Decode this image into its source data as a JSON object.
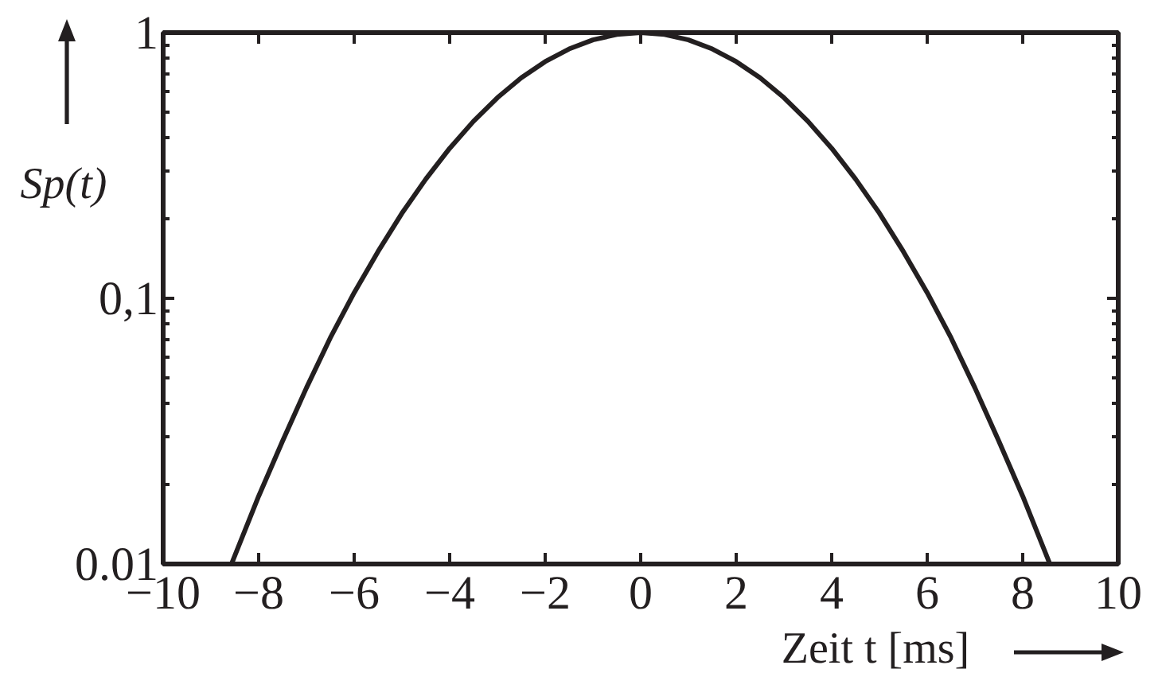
{
  "chart_data": {
    "type": "line",
    "xlabel": "Zeit t [ms]",
    "ylabel": "Sp(t)",
    "log": "y",
    "grid": false,
    "xlim": [
      -10,
      10
    ],
    "ylim": [
      0.01,
      1
    ],
    "xticks": [
      {
        "value": -10,
        "label": "−10"
      },
      {
        "value": -8,
        "label": "−8"
      },
      {
        "value": -6,
        "label": "−6"
      },
      {
        "value": -4,
        "label": "−4"
      },
      {
        "value": -2,
        "label": "−2"
      },
      0,
      2,
      4,
      6,
      8,
      10
    ],
    "yticks": [
      0.01,
      {
        "value": 0.1,
        "label": "0,1"
      },
      1
    ],
    "x": [
      -8.57,
      -8,
      -7.5,
      -7,
      -6.5,
      -6,
      -5.5,
      -5,
      -4.5,
      -4,
      -3.5,
      -3,
      -2.5,
      -2,
      -1.5,
      -1,
      -0.5,
      0,
      0.5,
      1,
      1.5,
      2,
      2.5,
      3,
      3.5,
      4,
      4.5,
      5,
      5.5,
      6,
      6.5,
      7,
      7.5,
      8,
      8.57
    ],
    "series": [
      {
        "color": "#231f20",
        "values": [
          0.01,
          0.018,
          0.029,
          0.046,
          0.071,
          0.105,
          0.15,
          0.209,
          0.281,
          0.367,
          0.464,
          0.569,
          0.676,
          0.778,
          0.868,
          0.939,
          0.984,
          1,
          0.984,
          0.939,
          0.868,
          0.778,
          0.676,
          0.569,
          0.464,
          0.367,
          0.281,
          0.209,
          0.15,
          0.105,
          0.071,
          0.046,
          0.029,
          0.018,
          0.01
        ]
      }
    ]
  }
}
